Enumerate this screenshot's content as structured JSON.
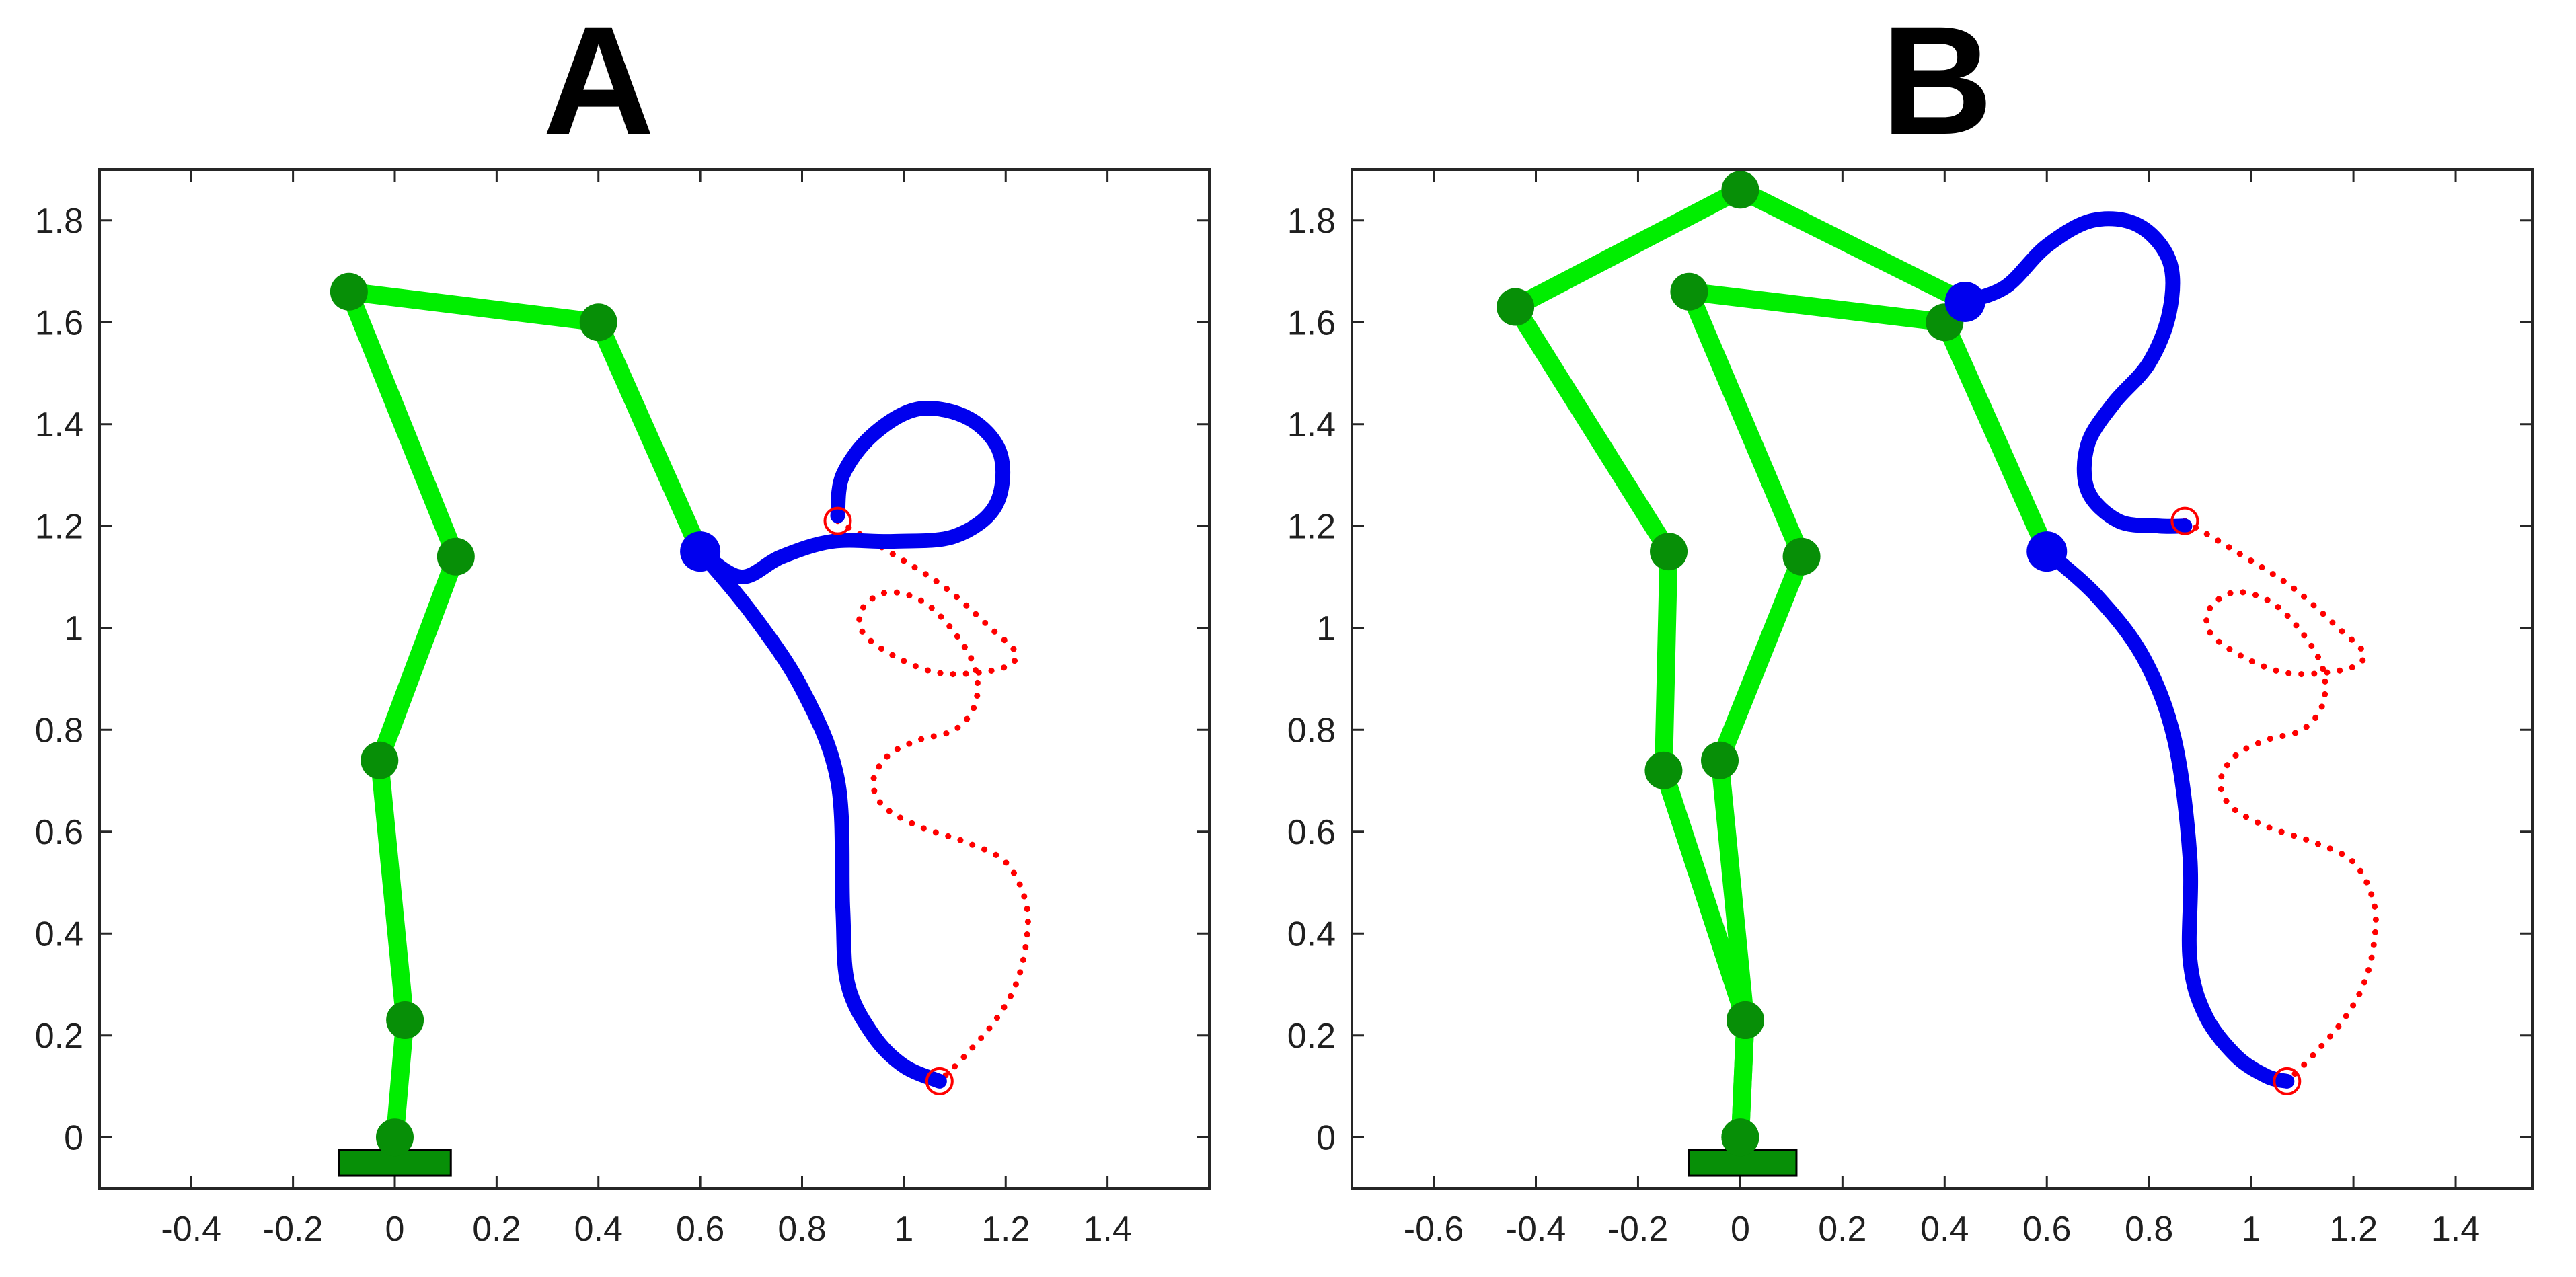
{
  "colors": {
    "link": "#00ee00",
    "joint": "#078f07",
    "trajectory": "#0000ee",
    "target": "#ff0000",
    "base": "#078f07",
    "axis": "#262626"
  },
  "chart_data": [
    {
      "type": "line",
      "title": "A",
      "xlabel": "",
      "ylabel": "",
      "xlim": [
        -0.58,
        1.6
      ],
      "ylim": [
        -0.1,
        1.9
      ],
      "xticks": [
        -0.4,
        -0.2,
        0,
        0.2,
        0.4,
        0.6,
        0.8,
        1,
        1.2,
        1.4
      ],
      "xtick_labels": [
        "-0.4",
        "-0.2",
        "0",
        "0.2",
        "0.4",
        "0.6",
        "0.8",
        "1",
        "1.2",
        "1.4"
      ],
      "yticks": [
        0,
        0.2,
        0.4,
        0.6,
        0.8,
        1,
        1.2,
        1.4,
        1.6,
        1.8
      ],
      "ytick_labels": [
        "0",
        "0.2",
        "0.4",
        "0.6",
        "0.8",
        "1",
        "1.2",
        "1.4",
        "1.6",
        "1.8"
      ],
      "grid": false,
      "base": {
        "x": [
          -0.11,
          0.11
        ],
        "y": [
          -0.075,
          -0.025
        ]
      },
      "arms": [
        {
          "joints": [
            [
              0,
              0
            ],
            [
              0.02,
              0.23
            ],
            [
              -0.03,
              0.74
            ],
            [
              0.12,
              1.14
            ],
            [
              -0.09,
              1.66
            ],
            [
              0.4,
              1.6
            ],
            [
              0.6,
              1.15
            ]
          ]
        }
      ],
      "end_effectors": [
        [
          0.6,
          1.15
        ]
      ],
      "end_effector_paths": [
        [
          [
            0.6,
            1.15
          ],
          [
            0.68,
            1.1
          ],
          [
            0.76,
            1.14
          ],
          [
            0.86,
            1.17
          ],
          [
            0.98,
            1.17
          ],
          [
            1.1,
            1.18
          ],
          [
            1.18,
            1.24
          ],
          [
            1.19,
            1.34
          ],
          [
            1.13,
            1.41
          ],
          [
            1.03,
            1.43
          ],
          [
            0.94,
            1.38
          ],
          [
            0.88,
            1.3
          ],
          [
            0.87,
            1.22
          ]
        ],
        [
          [
            0.6,
            1.15
          ],
          [
            0.7,
            1.03
          ],
          [
            0.8,
            0.88
          ],
          [
            0.87,
            0.7
          ],
          [
            0.88,
            0.45
          ],
          [
            0.89,
            0.3
          ],
          [
            0.94,
            0.2
          ],
          [
            1.0,
            0.14
          ],
          [
            1.07,
            0.11
          ]
        ]
      ],
      "target_path": [
        [
          0.87,
          1.21
        ],
        [
          0.97,
          1.15
        ],
        [
          1.08,
          1.08
        ],
        [
          1.17,
          1.0
        ],
        [
          1.22,
          0.95
        ],
        [
          1.19,
          0.92
        ],
        [
          1.08,
          0.91
        ],
        [
          0.99,
          0.94
        ],
        [
          0.92,
          0.99
        ],
        [
          0.92,
          1.04
        ],
        [
          0.97,
          1.07
        ],
        [
          1.04,
          1.05
        ],
        [
          1.1,
          0.99
        ],
        [
          1.14,
          0.92
        ],
        [
          1.14,
          0.85
        ],
        [
          1.1,
          0.8
        ],
        [
          1.03,
          0.78
        ],
        [
          0.97,
          0.75
        ],
        [
          0.94,
          0.7
        ],
        [
          0.96,
          0.65
        ],
        [
          1.03,
          0.61
        ],
        [
          1.12,
          0.58
        ],
        [
          1.2,
          0.54
        ],
        [
          1.24,
          0.46
        ],
        [
          1.24,
          0.38
        ],
        [
          1.22,
          0.3
        ],
        [
          1.18,
          0.23
        ],
        [
          1.12,
          0.16
        ],
        [
          1.07,
          0.11
        ]
      ],
      "markers": [
        [
          0.87,
          1.21
        ],
        [
          1.07,
          0.11
        ]
      ]
    },
    {
      "type": "line",
      "title": "B",
      "xlabel": "",
      "ylabel": "",
      "xlim": [
        -0.76,
        1.55
      ],
      "ylim": [
        -0.1,
        1.9
      ],
      "xticks": [
        -0.6,
        -0.4,
        -0.2,
        0,
        0.2,
        0.4,
        0.6,
        0.8,
        1,
        1.2,
        1.4
      ],
      "xtick_labels": [
        "-0.6",
        "-0.4",
        "-0.2",
        "0",
        "0.2",
        "0.4",
        "0.6",
        "0.8",
        "1",
        "1.2",
        "1.4"
      ],
      "yticks": [
        0,
        0.2,
        0.4,
        0.6,
        0.8,
        1,
        1.2,
        1.4,
        1.6,
        1.8
      ],
      "ytick_labels": [
        "0",
        "0.2",
        "0.4",
        "0.6",
        "0.8",
        "1",
        "1.2",
        "1.4",
        "1.6",
        "1.8"
      ],
      "grid": false,
      "base": {
        "x": [
          -0.1,
          0.11
        ],
        "y": [
          -0.075,
          -0.025
        ]
      },
      "arms": [
        {
          "joints": [
            [
              0,
              0
            ],
            [
              0.01,
              0.23
            ],
            [
              -0.15,
              0.72
            ],
            [
              -0.14,
              1.15
            ],
            [
              -0.44,
              1.63
            ],
            [
              0,
              1.86
            ],
            [
              0.44,
              1.64
            ]
          ]
        },
        {
          "joints": [
            [
              0,
              0
            ],
            [
              0.01,
              0.23
            ],
            [
              -0.04,
              0.74
            ],
            [
              0.12,
              1.14
            ],
            [
              -0.1,
              1.66
            ],
            [
              0.4,
              1.6
            ],
            [
              0.6,
              1.15
            ]
          ]
        }
      ],
      "end_effectors": [
        [
          0.44,
          1.64
        ],
        [
          0.6,
          1.15
        ]
      ],
      "end_effector_paths": [
        [
          [
            0.44,
            1.64
          ],
          [
            0.52,
            1.67
          ],
          [
            0.6,
            1.75
          ],
          [
            0.69,
            1.8
          ],
          [
            0.78,
            1.79
          ],
          [
            0.84,
            1.72
          ],
          [
            0.84,
            1.62
          ],
          [
            0.8,
            1.52
          ],
          [
            0.73,
            1.44
          ],
          [
            0.68,
            1.36
          ],
          [
            0.68,
            1.27
          ],
          [
            0.74,
            1.21
          ],
          [
            0.82,
            1.2
          ],
          [
            0.87,
            1.2
          ]
        ],
        [
          [
            0.6,
            1.15
          ],
          [
            0.7,
            1.06
          ],
          [
            0.79,
            0.94
          ],
          [
            0.85,
            0.78
          ],
          [
            0.88,
            0.55
          ],
          [
            0.88,
            0.35
          ],
          [
            0.91,
            0.24
          ],
          [
            0.97,
            0.16
          ],
          [
            1.03,
            0.12
          ],
          [
            1.07,
            0.11
          ]
        ]
      ],
      "target_path": [
        [
          0.87,
          1.21
        ],
        [
          0.97,
          1.15
        ],
        [
          1.08,
          1.08
        ],
        [
          1.17,
          1.0
        ],
        [
          1.22,
          0.95
        ],
        [
          1.19,
          0.92
        ],
        [
          1.08,
          0.91
        ],
        [
          0.99,
          0.94
        ],
        [
          0.92,
          0.99
        ],
        [
          0.92,
          1.04
        ],
        [
          0.97,
          1.07
        ],
        [
          1.04,
          1.05
        ],
        [
          1.1,
          0.99
        ],
        [
          1.14,
          0.92
        ],
        [
          1.14,
          0.85
        ],
        [
          1.1,
          0.8
        ],
        [
          1.03,
          0.78
        ],
        [
          0.97,
          0.75
        ],
        [
          0.94,
          0.7
        ],
        [
          0.96,
          0.65
        ],
        [
          1.03,
          0.61
        ],
        [
          1.12,
          0.58
        ],
        [
          1.2,
          0.54
        ],
        [
          1.24,
          0.46
        ],
        [
          1.24,
          0.38
        ],
        [
          1.22,
          0.3
        ],
        [
          1.18,
          0.23
        ],
        [
          1.12,
          0.16
        ],
        [
          1.07,
          0.11
        ]
      ],
      "markers": [
        [
          0.87,
          1.21
        ],
        [
          1.07,
          0.11
        ]
      ]
    }
  ]
}
